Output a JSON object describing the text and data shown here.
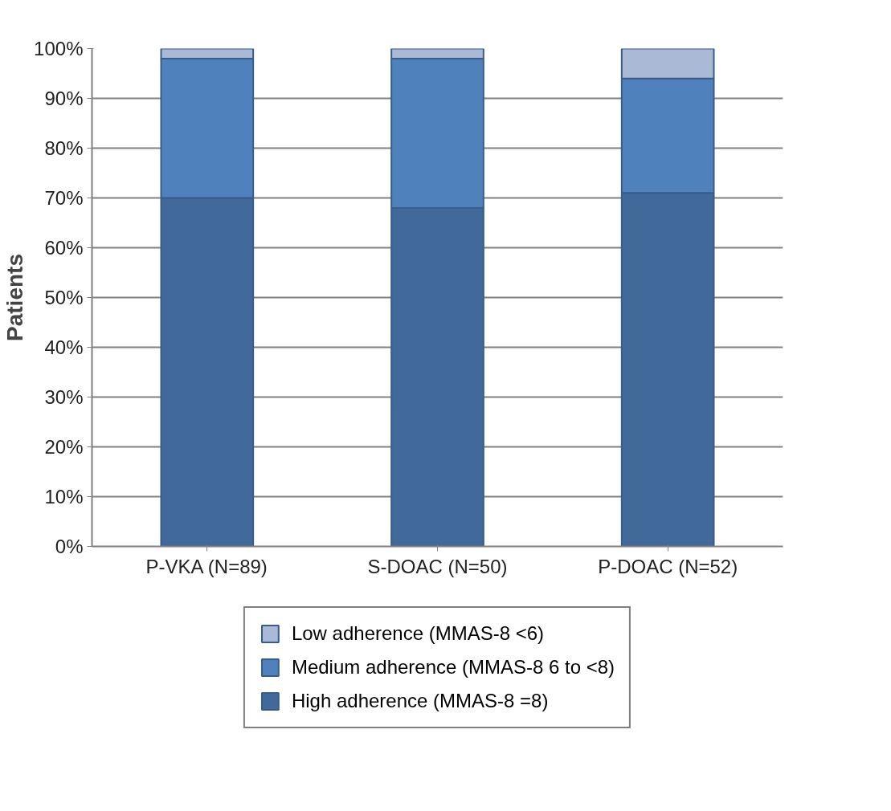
{
  "chart_data": {
    "type": "bar",
    "stacked": true,
    "ylabel": "Patients",
    "categories": [
      "P-VKA (N=89)",
      "S-DOAC (N=50)",
      "P-DOAC (N=52)"
    ],
    "series": [
      {
        "name": "High adherence (MMAS-8 =8)",
        "color": "#41699a",
        "values": [
          70,
          68,
          71
        ]
      },
      {
        "name": "Medium adherence (MMAS-8 6 to <8)",
        "color": "#4f81bd",
        "values": [
          28,
          30,
          23
        ]
      },
      {
        "name": "Low adherence (MMAS-8 <6)",
        "color": "#a9b9d6",
        "values": [
          2,
          2,
          6
        ]
      }
    ],
    "ylim": [
      0,
      100
    ],
    "yticks": [
      {
        "value": 0,
        "label": "0%"
      },
      {
        "value": 10,
        "label": "10%"
      },
      {
        "value": 20,
        "label": "20%"
      },
      {
        "value": 30,
        "label": "30%"
      },
      {
        "value": 40,
        "label": "40%"
      },
      {
        "value": 50,
        "label": "50%"
      },
      {
        "value": 60,
        "label": "60%"
      },
      {
        "value": 70,
        "label": "70%"
      },
      {
        "value": 80,
        "label": "80%"
      },
      {
        "value": 90,
        "label": "90%"
      },
      {
        "value": 100,
        "label": "100%"
      }
    ],
    "grid": "y",
    "legend": "bottom"
  }
}
